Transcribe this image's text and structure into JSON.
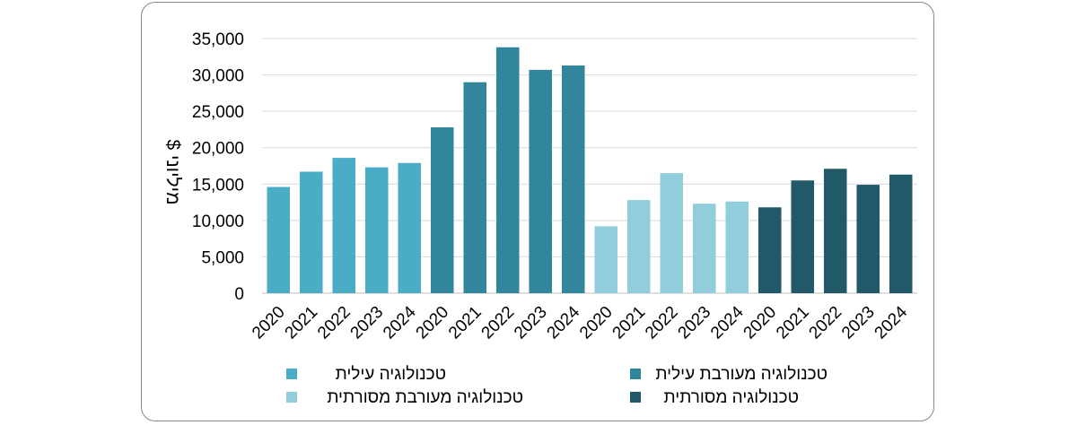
{
  "chart_data": {
    "type": "bar",
    "ylabel": "מיליוני $",
    "ylim": [
      0,
      35000
    ],
    "yticks": [
      0,
      5000,
      10000,
      15000,
      20000,
      25000,
      30000,
      35000
    ],
    "ytick_labels": [
      "0",
      "5,000",
      "10,000",
      "15,000",
      "20,000",
      "25,000",
      "30,000",
      "35,000"
    ],
    "grid": true,
    "legend_position": "bottom",
    "series": [
      {
        "name": "טכנולוגיה עילית",
        "color": "#4bacc6",
        "x": [
          "2020",
          "2021",
          "2022",
          "2023",
          "2024"
        ],
        "values": [
          14600,
          16700,
          18600,
          17300,
          17900
        ]
      },
      {
        "name": "טכנולוגיה מעורבת עילית",
        "color": "#31869b",
        "x": [
          "2020",
          "2021",
          "2022",
          "2023",
          "2024"
        ],
        "values": [
          22800,
          29000,
          33800,
          30700,
          31300
        ]
      },
      {
        "name": "טכנולוגיה מעורבת מסורתית",
        "color": "#92cddc",
        "x": [
          "2020",
          "2021",
          "2022",
          "2023",
          "2024"
        ],
        "values": [
          9200,
          12800,
          16500,
          12300,
          12600
        ]
      },
      {
        "name": "טכנולוגיה מסורתית",
        "color": "#215968",
        "x": [
          "2020",
          "2021",
          "2022",
          "2023",
          "2024"
        ],
        "values": [
          11800,
          15500,
          17100,
          14900,
          16300
        ]
      }
    ]
  }
}
